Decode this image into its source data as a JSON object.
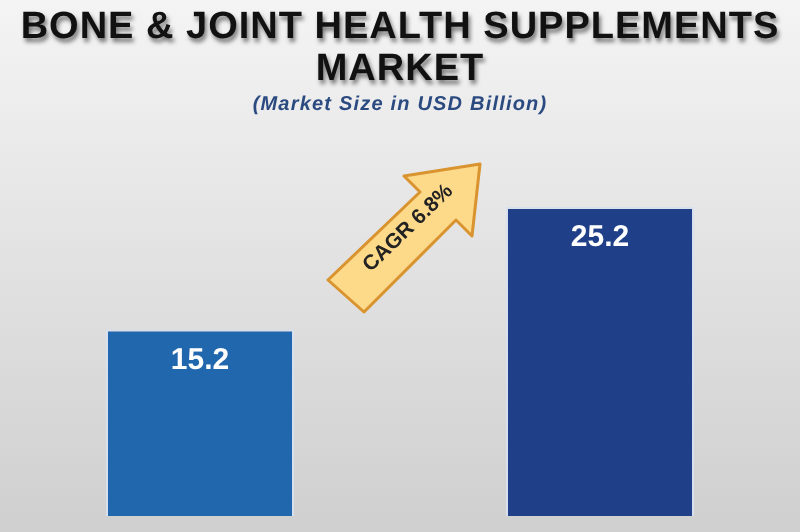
{
  "chart_data": {
    "type": "bar",
    "title": "BONE & JOINT HEALTH SUPPLEMENTS MARKET",
    "subtitle": "(Market Size in USD Billion)",
    "categories": [
      null,
      null
    ],
    "values": [
      15.2,
      25.2
    ],
    "colors": [
      "#2167ae",
      "#1f3f88"
    ],
    "data_labels": true,
    "relative": false,
    "legend": false,
    "tick_labels": false,
    "annotations": [
      "CAGR 6.8%"
    ]
  }
}
